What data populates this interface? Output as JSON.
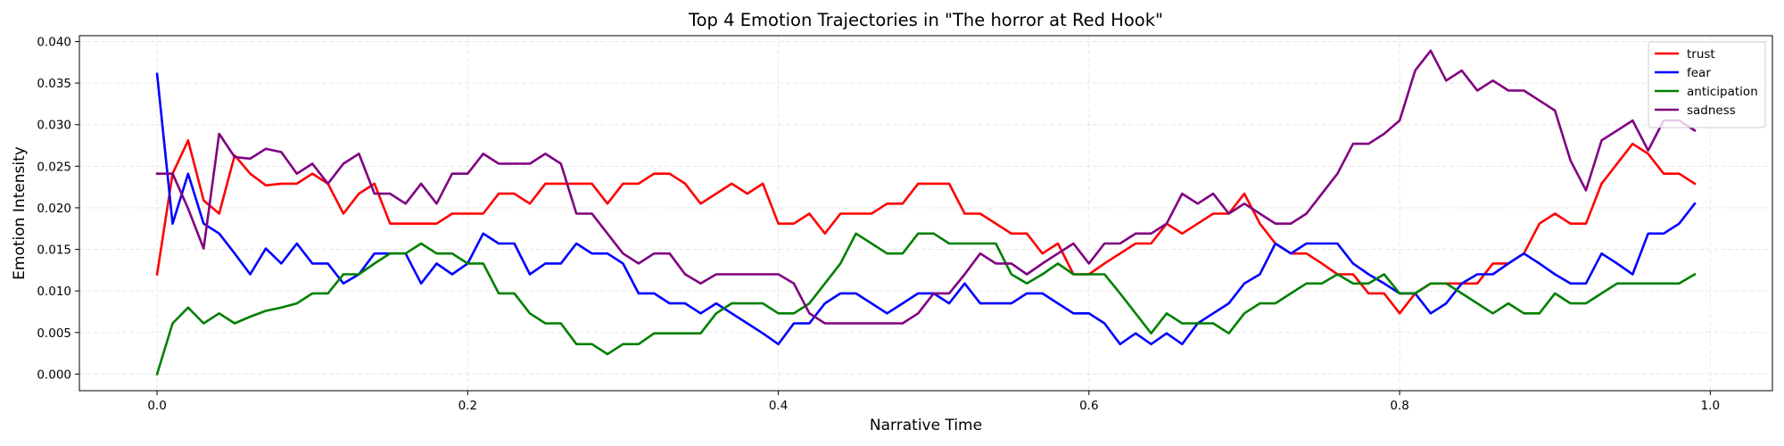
{
  "chart_data": {
    "type": "line",
    "title": "Top 4 Emotion Trajectories in \"The horror at Red Hook\"",
    "xlabel": "Narrative Time",
    "ylabel": "Emotion Intensity",
    "xlim": [
      -0.05,
      1.04
    ],
    "ylim": [
      -0.002,
      0.0407
    ],
    "x_ticks": [
      0.0,
      0.2,
      0.4,
      0.6,
      0.8,
      1.0
    ],
    "x_tick_labels": [
      "0.0",
      "0.2",
      "0.4",
      "0.6",
      "0.8",
      "1.0"
    ],
    "y_ticks": [
      0.0,
      0.005,
      0.01,
      0.015,
      0.02,
      0.025,
      0.03,
      0.035,
      0.04
    ],
    "y_tick_labels": [
      "0.000",
      "0.005",
      "0.010",
      "0.015",
      "0.020",
      "0.025",
      "0.030",
      "0.035",
      "0.040"
    ],
    "grid": true,
    "legend_position": "top-right",
    "x_start": 0.0,
    "x_step": 0.01,
    "series": [
      {
        "name": "trust",
        "color": "#ff0000",
        "values": [
          0.012,
          0.0241,
          0.0281,
          0.0209,
          0.0193,
          0.0263,
          0.0241,
          0.0227,
          0.0229,
          0.0229,
          0.0241,
          0.0229,
          0.0193,
          0.0217,
          0.0229,
          0.0181,
          0.0181,
          0.0181,
          0.0181,
          0.0193,
          0.0193,
          0.0193,
          0.0217,
          0.0217,
          0.0205,
          0.0229,
          0.0229,
          0.0229,
          0.0229,
          0.0205,
          0.0229,
          0.0229,
          0.0241,
          0.0241,
          0.0229,
          0.0205,
          0.0217,
          0.0229,
          0.0217,
          0.0229,
          0.0181,
          0.0181,
          0.0193,
          0.0169,
          0.0193,
          0.0193,
          0.0193,
          0.0205,
          0.0205,
          0.0229,
          0.0229,
          0.0229,
          0.0193,
          0.0193,
          0.0181,
          0.0169,
          0.0169,
          0.0145,
          0.0157,
          0.012,
          0.012,
          0.0133,
          0.0145,
          0.0157,
          0.0157,
          0.0181,
          0.0169,
          0.0181,
          0.0193,
          0.0193,
          0.0217,
          0.0181,
          0.0157,
          0.0145,
          0.0145,
          0.0133,
          0.012,
          0.012,
          0.0097,
          0.0097,
          0.0073,
          0.0097,
          0.0109,
          0.0109,
          0.0109,
          0.0109,
          0.0133,
          0.0133,
          0.0145,
          0.0181,
          0.0193,
          0.0181,
          0.0181,
          0.0229,
          0.0253,
          0.0277,
          0.0265,
          0.0241,
          0.0241,
          0.0229
        ]
      },
      {
        "name": "fear",
        "color": "#0000ff",
        "values": [
          0.0361,
          0.0181,
          0.0241,
          0.0181,
          0.0169,
          0.0145,
          0.012,
          0.0151,
          0.0133,
          0.0157,
          0.0133,
          0.0133,
          0.0109,
          0.012,
          0.0145,
          0.0145,
          0.0145,
          0.0109,
          0.0133,
          0.012,
          0.0133,
          0.0169,
          0.0157,
          0.0157,
          0.012,
          0.0133,
          0.0133,
          0.0157,
          0.0145,
          0.0145,
          0.0133,
          0.0097,
          0.0097,
          0.0085,
          0.0085,
          0.0073,
          0.0085,
          0.0073,
          0.0061,
          0.0049,
          0.0036,
          0.0061,
          0.0061,
          0.0085,
          0.0097,
          0.0097,
          0.0085,
          0.0073,
          0.0085,
          0.0097,
          0.0097,
          0.0085,
          0.0109,
          0.0085,
          0.0085,
          0.0085,
          0.0097,
          0.0097,
          0.0085,
          0.0073,
          0.0073,
          0.0061,
          0.0036,
          0.0049,
          0.0036,
          0.0049,
          0.0036,
          0.0061,
          0.0073,
          0.0085,
          0.0109,
          0.012,
          0.0157,
          0.0145,
          0.0157,
          0.0157,
          0.0157,
          0.0133,
          0.012,
          0.0109,
          0.0097,
          0.0097,
          0.0073,
          0.0085,
          0.0109,
          0.012,
          0.012,
          0.0133,
          0.0145,
          0.0133,
          0.012,
          0.0109,
          0.0109,
          0.0145,
          0.0133,
          0.012,
          0.0169,
          0.0169,
          0.0181,
          0.0205
        ]
      },
      {
        "name": "anticipation",
        "color": "#008000",
        "values": [
          0.0,
          0.0061,
          0.008,
          0.0061,
          0.0073,
          0.0061,
          0.0069,
          0.0076,
          0.008,
          0.0085,
          0.0097,
          0.0097,
          0.012,
          0.012,
          0.0133,
          0.0145,
          0.0145,
          0.0157,
          0.0145,
          0.0145,
          0.0133,
          0.0133,
          0.0097,
          0.0097,
          0.0073,
          0.0061,
          0.0061,
          0.0036,
          0.0036,
          0.0024,
          0.0036,
          0.0036,
          0.0049,
          0.0049,
          0.0049,
          0.0049,
          0.0073,
          0.0085,
          0.0085,
          0.0085,
          0.0073,
          0.0073,
          0.0085,
          0.0109,
          0.0133,
          0.0169,
          0.0157,
          0.0145,
          0.0145,
          0.0169,
          0.0169,
          0.0157,
          0.0157,
          0.0157,
          0.0157,
          0.012,
          0.0109,
          0.012,
          0.0133,
          0.012,
          0.012,
          0.012,
          0.0097,
          0.0073,
          0.0049,
          0.0073,
          0.0061,
          0.0061,
          0.0061,
          0.0049,
          0.0073,
          0.0085,
          0.0085,
          0.0097,
          0.0109,
          0.0109,
          0.012,
          0.0109,
          0.0109,
          0.012,
          0.0097,
          0.0097,
          0.0109,
          0.0109,
          0.0097,
          0.0085,
          0.0073,
          0.0085,
          0.0073,
          0.0073,
          0.0097,
          0.0085,
          0.0085,
          0.0097,
          0.0109,
          0.0109,
          0.0109,
          0.0109,
          0.0109,
          0.012
        ]
      },
      {
        "name": "sadness",
        "color": "#800080",
        "values": [
          0.0241,
          0.0241,
          0.0199,
          0.0151,
          0.0289,
          0.0261,
          0.0259,
          0.0271,
          0.0267,
          0.0241,
          0.0253,
          0.0229,
          0.0253,
          0.0265,
          0.0217,
          0.0217,
          0.0205,
          0.0229,
          0.0205,
          0.0241,
          0.0241,
          0.0265,
          0.0253,
          0.0253,
          0.0253,
          0.0265,
          0.0253,
          0.0193,
          0.0193,
          0.0169,
          0.0145,
          0.0133,
          0.0145,
          0.0145,
          0.012,
          0.0109,
          0.012,
          0.012,
          0.012,
          0.012,
          0.012,
          0.0109,
          0.0073,
          0.0061,
          0.0061,
          0.0061,
          0.0061,
          0.0061,
          0.0061,
          0.0073,
          0.0097,
          0.0097,
          0.012,
          0.0145,
          0.0133,
          0.0133,
          0.012,
          0.0133,
          0.0145,
          0.0157,
          0.0133,
          0.0157,
          0.0157,
          0.0169,
          0.0169,
          0.0181,
          0.0217,
          0.0205,
          0.0217,
          0.0193,
          0.0205,
          0.0193,
          0.0181,
          0.0181,
          0.0193,
          0.0217,
          0.0241,
          0.0277,
          0.0277,
          0.0289,
          0.0305,
          0.0365,
          0.0389,
          0.0353,
          0.0365,
          0.0341,
          0.0353,
          0.0341,
          0.0341,
          0.0329,
          0.0317,
          0.0257,
          0.0221,
          0.0281,
          0.0293,
          0.0305,
          0.0269,
          0.0305,
          0.0305,
          0.0293
        ]
      }
    ]
  }
}
